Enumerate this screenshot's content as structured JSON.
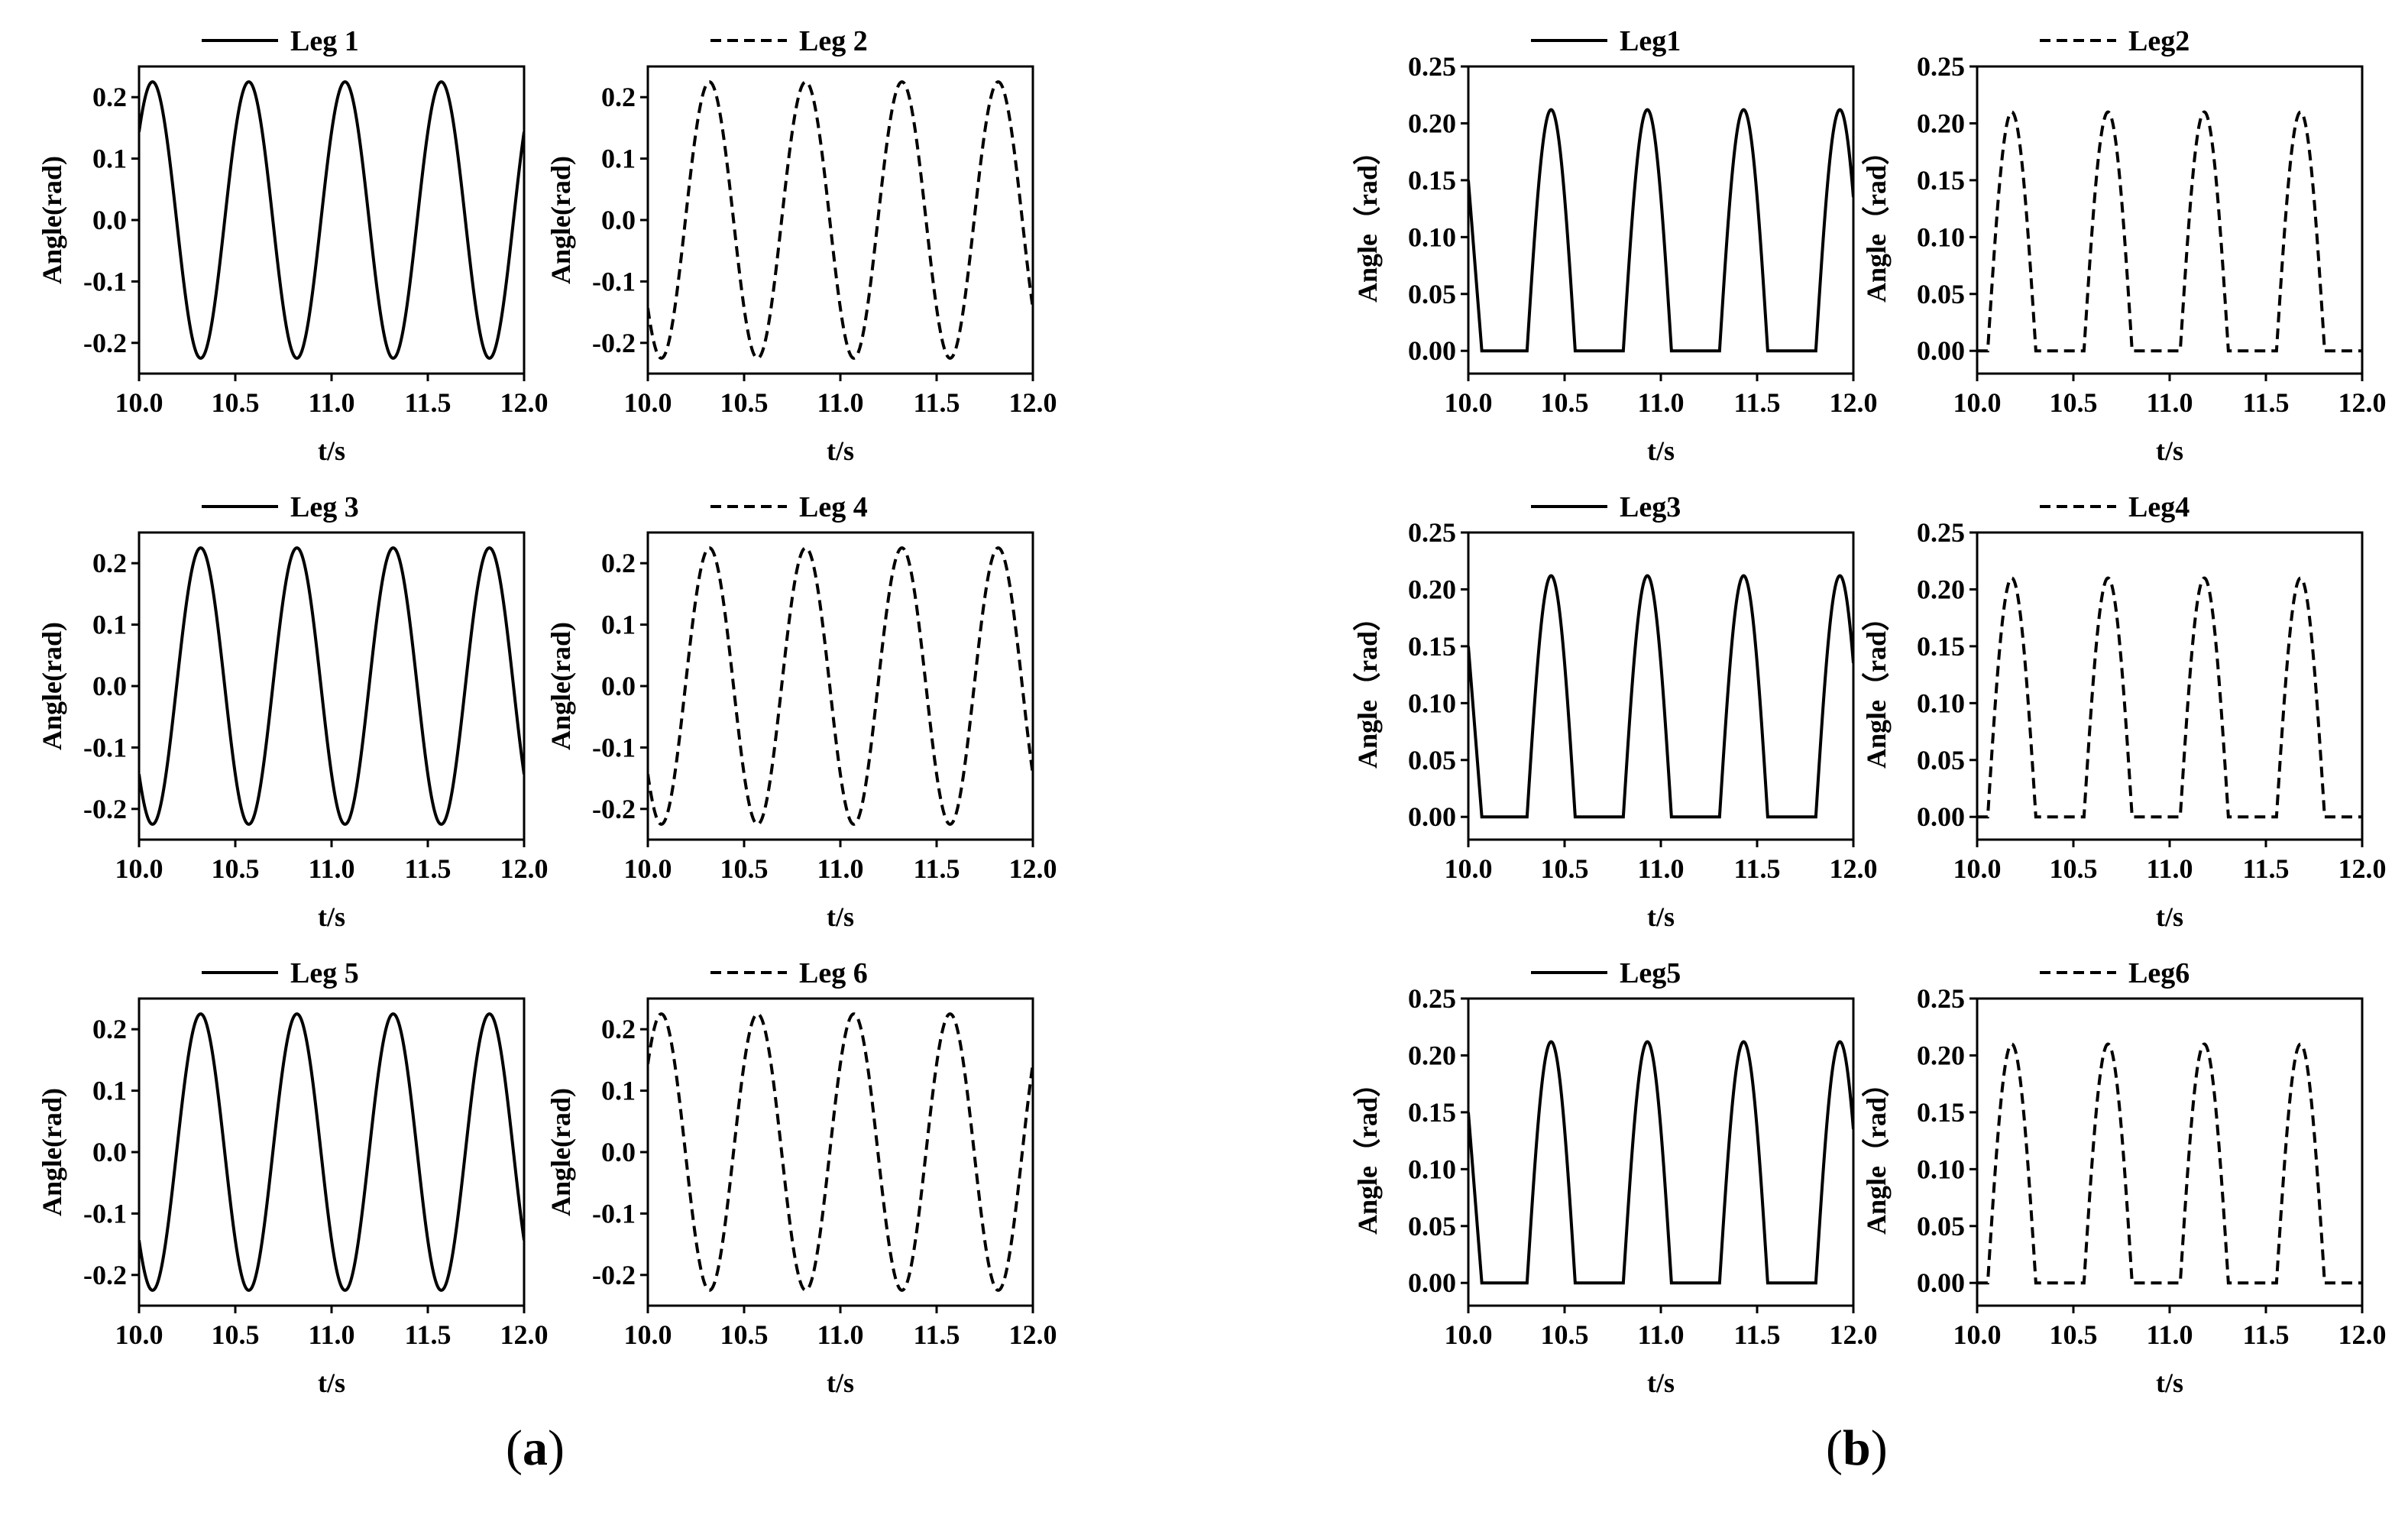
{
  "panels": [
    {
      "label_open": "(",
      "label_letter": "a",
      "label_close": ")"
    },
    {
      "label_open": "(",
      "label_letter": "b",
      "label_close": ")"
    }
  ],
  "chart_data": [
    {
      "type": "line",
      "panel": "a",
      "legend": "Leg 1",
      "xlabel": "t/s",
      "ylabel": "Angle(rad)",
      "xlim": [
        10.0,
        12.0
      ],
      "ylim": [
        -0.25,
        0.25
      ],
      "xticks": [
        "10.0",
        "10.5",
        "11.0",
        "11.5",
        "12.0"
      ],
      "yticks": [
        "-0.2",
        "-0.1",
        "0.0",
        "0.1",
        "0.2"
      ],
      "line_style": "solid",
      "color": "#000000",
      "series": [
        {
          "name": "Leg 1",
          "waveform": "sine",
          "amplitude": 0.225,
          "period": 0.5,
          "peak_times": [
            10.07,
            10.57,
            11.07,
            11.57
          ]
        }
      ]
    },
    {
      "type": "line",
      "panel": "a",
      "legend": "Leg 2",
      "xlabel": "t/s",
      "ylabel": "Angle(rad)",
      "xlim": [
        10.0,
        12.0
      ],
      "ylim": [
        -0.25,
        0.25
      ],
      "xticks": [
        "10.0",
        "10.5",
        "11.0",
        "11.5",
        "12.0"
      ],
      "yticks": [
        "-0.2",
        "-0.1",
        "0.0",
        "0.1",
        "0.2"
      ],
      "line_style": "dashed",
      "color": "#000000",
      "series": [
        {
          "name": "Leg 2",
          "waveform": "sine",
          "amplitude": 0.225,
          "period": 0.5,
          "peak_times": [
            10.32,
            10.82,
            11.32,
            11.82
          ]
        }
      ]
    },
    {
      "type": "line",
      "panel": "a",
      "legend": "Leg 3",
      "xlabel": "t/s",
      "ylabel": "Angle(rad)",
      "xlim": [
        10.0,
        12.0
      ],
      "ylim": [
        -0.25,
        0.25
      ],
      "xticks": [
        "10.0",
        "10.5",
        "11.0",
        "11.5",
        "12.0"
      ],
      "yticks": [
        "-0.2",
        "-0.1",
        "0.0",
        "0.1",
        "0.2"
      ],
      "line_style": "solid",
      "color": "#000000",
      "series": [
        {
          "name": "Leg 3",
          "waveform": "sine",
          "amplitude": 0.225,
          "period": 0.5,
          "peak_times": [
            10.32,
            10.82,
            11.32,
            11.82
          ]
        }
      ]
    },
    {
      "type": "line",
      "panel": "a",
      "legend": "Leg 4",
      "xlabel": "t/s",
      "ylabel": "Angle(rad)",
      "xlim": [
        10.0,
        12.0
      ],
      "ylim": [
        -0.25,
        0.25
      ],
      "xticks": [
        "10.0",
        "10.5",
        "11.0",
        "11.5",
        "12.0"
      ],
      "yticks": [
        "-0.2",
        "-0.1",
        "0.0",
        "0.1",
        "0.2"
      ],
      "line_style": "dashed",
      "color": "#000000",
      "series": [
        {
          "name": "Leg 4",
          "waveform": "sine",
          "amplitude": 0.225,
          "period": 0.5,
          "peak_times": [
            10.32,
            10.82,
            11.32,
            11.82
          ]
        }
      ]
    },
    {
      "type": "line",
      "panel": "a",
      "legend": "Leg 5",
      "xlabel": "t/s",
      "ylabel": "Angle(rad)",
      "xlim": [
        10.0,
        12.0
      ],
      "ylim": [
        -0.25,
        0.25
      ],
      "xticks": [
        "10.0",
        "10.5",
        "11.0",
        "11.5",
        "12.0"
      ],
      "yticks": [
        "-0.2",
        "-0.1",
        "0.0",
        "0.1",
        "0.2"
      ],
      "line_style": "solid",
      "color": "#000000",
      "series": [
        {
          "name": "Leg 5",
          "waveform": "sine",
          "amplitude": 0.225,
          "period": 0.5,
          "peak_times": [
            10.32,
            10.82,
            11.32,
            11.82
          ]
        }
      ]
    },
    {
      "type": "line",
      "panel": "a",
      "legend": "Leg 6",
      "xlabel": "t/s",
      "ylabel": "Angle(rad)",
      "xlim": [
        10.0,
        12.0
      ],
      "ylim": [
        -0.25,
        0.25
      ],
      "xticks": [
        "10.0",
        "10.5",
        "11.0",
        "11.5",
        "12.0"
      ],
      "yticks": [
        "-0.2",
        "-0.1",
        "0.0",
        "0.1",
        "0.2"
      ],
      "line_style": "dashed",
      "color": "#000000",
      "series": [
        {
          "name": "Leg 6",
          "waveform": "sine",
          "amplitude": 0.225,
          "period": 0.5,
          "peak_times": [
            10.07,
            10.57,
            11.07,
            11.57
          ]
        }
      ]
    },
    {
      "type": "line",
      "panel": "b",
      "legend": "Leg1",
      "xlabel": "t/s",
      "ylabel": "Angle（rad）",
      "xlim": [
        10.0,
        12.0
      ],
      "ylim": [
        -0.02,
        0.25
      ],
      "xticks": [
        "10.0",
        "10.5",
        "11.0",
        "11.5",
        "12.0"
      ],
      "yticks": [
        "0.00",
        "0.05",
        "0.10",
        "0.15",
        "0.20",
        "0.25"
      ],
      "line_style": "solid",
      "color": "#000000",
      "series": [
        {
          "name": "Leg1",
          "waveform": "half-rectified sine",
          "amplitude": 0.212,
          "period": 0.5,
          "start_value": 0.15,
          "peak_times": [
            10.43,
            10.93,
            11.43,
            11.93
          ]
        }
      ]
    },
    {
      "type": "line",
      "panel": "b",
      "legend": "Leg2",
      "xlabel": "t/s",
      "ylabel": "Angle（rad）",
      "xlim": [
        10.0,
        12.0
      ],
      "ylim": [
        -0.02,
        0.25
      ],
      "xticks": [
        "10.0",
        "10.5",
        "11.0",
        "11.5",
        "12.0"
      ],
      "yticks": [
        "0.00",
        "0.05",
        "0.10",
        "0.15",
        "0.20",
        "0.25"
      ],
      "line_style": "dashed",
      "color": "#000000",
      "series": [
        {
          "name": "Leg2",
          "waveform": "half-rectified sine",
          "amplitude": 0.21,
          "period": 0.5,
          "start_value": 0.0,
          "peak_times": [
            10.18,
            10.68,
            11.18,
            11.68
          ]
        }
      ]
    },
    {
      "type": "line",
      "panel": "b",
      "legend": "Leg3",
      "xlabel": "t/s",
      "ylabel": "Angle（rad）",
      "xlim": [
        10.0,
        12.0
      ],
      "ylim": [
        -0.02,
        0.25
      ],
      "xticks": [
        "10.0",
        "10.5",
        "11.0",
        "11.5",
        "12.0"
      ],
      "yticks": [
        "0.00",
        "0.05",
        "0.10",
        "0.15",
        "0.20",
        "0.25"
      ],
      "line_style": "solid",
      "color": "#000000",
      "series": [
        {
          "name": "Leg3",
          "waveform": "half-rectified sine",
          "amplitude": 0.212,
          "period": 0.5,
          "start_value": 0.15,
          "peak_times": [
            10.43,
            10.93,
            11.43,
            11.93
          ]
        }
      ]
    },
    {
      "type": "line",
      "panel": "b",
      "legend": "Leg4",
      "xlabel": "t/s",
      "ylabel": "Angle（rad）",
      "xlim": [
        10.0,
        12.0
      ],
      "ylim": [
        -0.02,
        0.25
      ],
      "xticks": [
        "10.0",
        "10.5",
        "11.0",
        "11.5",
        "12.0"
      ],
      "yticks": [
        "0.00",
        "0.05",
        "0.10",
        "0.15",
        "0.20",
        "0.25"
      ],
      "line_style": "dashed",
      "color": "#000000",
      "series": [
        {
          "name": "Leg4",
          "waveform": "half-rectified sine",
          "amplitude": 0.21,
          "period": 0.5,
          "start_value": 0.0,
          "peak_times": [
            10.18,
            10.68,
            11.18,
            11.68
          ]
        }
      ]
    },
    {
      "type": "line",
      "panel": "b",
      "legend": "Leg5",
      "xlabel": "t/s",
      "ylabel": "Angle（rad）",
      "xlim": [
        10.0,
        12.0
      ],
      "ylim": [
        -0.02,
        0.25
      ],
      "xticks": [
        "10.0",
        "10.5",
        "11.0",
        "11.5",
        "12.0"
      ],
      "yticks": [
        "0.00",
        "0.05",
        "0.10",
        "0.15",
        "0.20",
        "0.25"
      ],
      "line_style": "solid",
      "color": "#000000",
      "series": [
        {
          "name": "Leg5",
          "waveform": "half-rectified sine",
          "amplitude": 0.212,
          "period": 0.5,
          "start_value": 0.15,
          "peak_times": [
            10.43,
            10.93,
            11.43,
            11.93
          ]
        }
      ]
    },
    {
      "type": "line",
      "panel": "b",
      "legend": "Leg6",
      "xlabel": "t/s",
      "ylabel": "Angle（rad）",
      "xlim": [
        10.0,
        12.0
      ],
      "ylim": [
        -0.02,
        0.25
      ],
      "xticks": [
        "10.0",
        "10.5",
        "11.0",
        "11.5",
        "12.0"
      ],
      "yticks": [
        "0.00",
        "0.05",
        "0.10",
        "0.15",
        "0.20",
        "0.25"
      ],
      "line_style": "dashed",
      "color": "#000000",
      "series": [
        {
          "name": "Leg6",
          "waveform": "half-rectified sine",
          "amplitude": 0.21,
          "period": 0.5,
          "start_value": 0.0,
          "peak_times": [
            10.18,
            10.68,
            11.18,
            11.68
          ]
        }
      ]
    }
  ]
}
